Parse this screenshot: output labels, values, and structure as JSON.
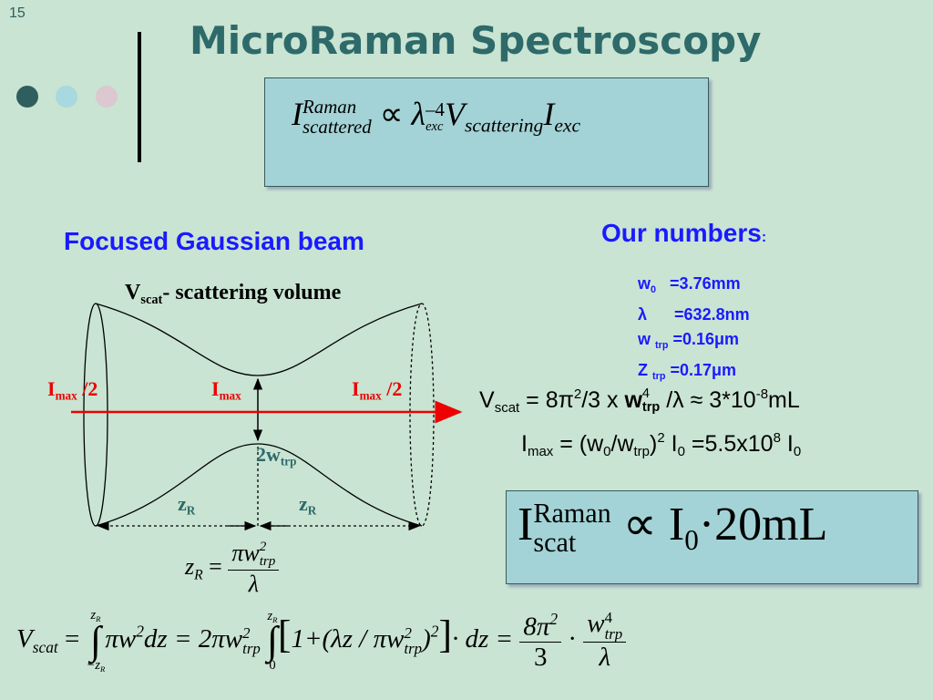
{
  "slide_number": "15",
  "title": "MicroRaman Spectroscopy",
  "top_formula": {
    "I": "I",
    "I_sup": "Raman",
    "I_sub": "scattered",
    "prop": "∝",
    "lambda": "λ",
    "lambda_sup": "–4",
    "lambda_sub": "exc",
    "V": "V",
    "V_sub": "scattering",
    "I2": "I",
    "I2_sub": "exc"
  },
  "left_heading": "Focused Gaussian beam",
  "right_heading": {
    "text": "Our numbers",
    "colon": ":"
  },
  "numbers": [
    {
      "symbol": "w",
      "sub": "0",
      "value": "=3.76mm"
    },
    {
      "symbol": "λ",
      "value": "=632.8nm"
    },
    {
      "symbol": "w",
      "sub": "trp",
      "value": "=0.16μm"
    },
    {
      "symbol": "Z",
      "sub": "trp",
      "value": "=0.17μm"
    }
  ],
  "vscat_line": {
    "v": "V",
    "v_sub": "scat",
    "a": " = 8π",
    "a_sup": "2",
    "b": "/3 x ",
    "w": "w",
    "w_sub": "trp",
    "w_sup": "4",
    "c": " /λ ≈ 3*10",
    "c_sup": "-8",
    "d": "mL"
  },
  "imax_line": {
    "i": "I",
    "i_sub": "max",
    "a": " = (w",
    "a_sub": "0",
    "b": "/w",
    "b_sub": "trp",
    "c": ")",
    "c_sup": "2",
    "d": " I",
    "d_sub": "0",
    "e": " =5.5x10",
    "e_sup": "8",
    "f": " I",
    "f_sub": "0"
  },
  "result_formula": {
    "I": "I",
    "I_sup": "Raman",
    "I_sub": "scat",
    "prop": "∝",
    "I0": "I",
    "I0_sub": "0",
    "rest": "·20mL"
  },
  "diagram": {
    "vscat": {
      "v": "V",
      "v_sub": "scat",
      "text": "- scattering volume"
    },
    "imax_left": {
      "i": "I",
      "i_sub": "max",
      "text": " /2"
    },
    "imax_center": {
      "i": "I",
      "i_sub": "max"
    },
    "imax_right": {
      "i": "I",
      "i_sub": "max",
      "text": " /2"
    },
    "waist": {
      "text": "2w",
      "sub": "trp"
    },
    "zr_left": {
      "text": "z",
      "sub": "R"
    },
    "zr_right": {
      "text": "z",
      "sub": "R"
    }
  },
  "zr_formula": {
    "z": "z",
    "z_sub": "R",
    "eq": "=",
    "num": "πw",
    "num_sup": "2",
    "num_sub": "trp",
    "den": "λ"
  },
  "bottom_formula": {
    "V": "V",
    "V_sub": "scat",
    "eq1": "=",
    "int1": "∫",
    "int1_upper": "z",
    "int1_upper_sub": "R",
    "int1_lower": "−z",
    "int1_lower_sub": "R",
    "term1": "πw",
    "term1_sup": "2",
    "term2": "dz = 2πw",
    "term2_sup": "2",
    "term2_sub": "trp",
    "int2": "∫",
    "int2_upper": "z",
    "int2_upper_sub": "R",
    "int2_lower": "0",
    "bracket_open": "[",
    "term3": "1+(λz / πw",
    "term3_sup": "2",
    "term3_sub": "trp",
    "term4": ")",
    "term4_sup": "2",
    "bracket_close": "]",
    "term5": "· dz =",
    "frac1_num": "8π",
    "frac1_num_sup": "2",
    "frac1_den": "3",
    "dot": "·",
    "frac2_num": "w",
    "frac2_num_sup": "4",
    "frac2_num_sub": "trp",
    "frac2_den": "λ"
  }
}
